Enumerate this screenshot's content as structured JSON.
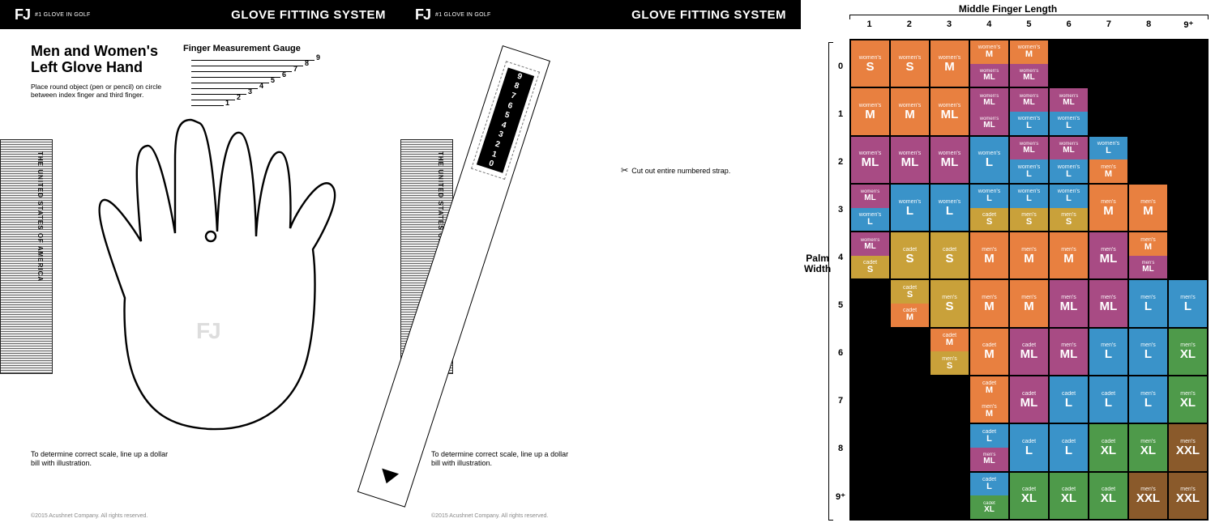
{
  "hdr": {
    "logo": "FJ",
    "tag": "#1 GLOVE IN GOLF",
    "title": "GLOVE FITTING SYSTEM"
  },
  "left": {
    "title": "Men and Women's Left Glove Hand",
    "sub": "Place round object (pen or pencil) on circle between index finger and third finger.",
    "gaugeTitle": "Finger Measurement Gauge",
    "scaleNote": "To determine correct scale, line up a dollar bill with illustration.",
    "copy": "©2015 Acushnet Company. All rights reserved."
  },
  "mid": {
    "cut": "Cut out entire numbered strap."
  },
  "gaugeNums": [
    "1",
    "2",
    "3",
    "4",
    "5",
    "6",
    "7",
    "8",
    "9"
  ],
  "strapNums": [
    "9",
    "8",
    "7",
    "6",
    "5",
    "4",
    "3",
    "2",
    "1",
    "0"
  ],
  "chart": {
    "axisX": "Middle Finger Length",
    "axisY1": "Palm",
    "axisY2": "Width",
    "cols": [
      "1",
      "2",
      "3",
      "4",
      "5",
      "6",
      "7",
      "8",
      "9⁺"
    ],
    "rows": [
      "0",
      "1",
      "2",
      "3",
      "4",
      "5",
      "6",
      "7",
      "8",
      "9⁺"
    ],
    "colors": {
      "orange": "#e88040",
      "gold": "#c9a13a",
      "plum": "#a84b84",
      "blue": "#3a93c9",
      "green": "#4e9a4a",
      "brown": "#8a5a2b",
      "black": "#000"
    },
    "cells": {
      "0,0": [
        {
          "p": "full",
          "c": "orange",
          "t": "women's",
          "s": "S"
        }
      ],
      "0,1": [
        {
          "p": "full",
          "c": "orange",
          "t": "women's",
          "s": "S"
        }
      ],
      "0,2": [
        {
          "p": "full",
          "c": "orange",
          "t": "women's",
          "s": "M"
        }
      ],
      "0,3": [
        {
          "p": "top",
          "c": "orange",
          "t": "women's",
          "s": "M"
        },
        {
          "p": "bot",
          "c": "plum",
          "t": "women's",
          "s": "ML"
        }
      ],
      "0,4": [
        {
          "p": "top",
          "c": "orange",
          "t": "women's",
          "s": "M"
        },
        {
          "p": "bot",
          "c": "plum",
          "t": "women's",
          "s": "ML"
        }
      ],
      "1,0": [
        {
          "p": "full",
          "c": "orange",
          "t": "women's",
          "s": "M"
        }
      ],
      "1,1": [
        {
          "p": "full",
          "c": "orange",
          "t": "women's",
          "s": "M"
        }
      ],
      "1,2": [
        {
          "p": "full",
          "c": "orange",
          "t": "women's",
          "s": "ML"
        }
      ],
      "1,3": [
        {
          "p": "top",
          "c": "plum",
          "t": "women's",
          "s": "ML"
        },
        {
          "p": "bot",
          "c": "plum",
          "t": "women's",
          "s": "ML"
        }
      ],
      "1,4": [
        {
          "p": "top",
          "c": "plum",
          "t": "women's",
          "s": "ML"
        },
        {
          "p": "bot",
          "c": "blue",
          "t": "women's",
          "s": "L"
        }
      ],
      "1,5": [
        {
          "p": "top",
          "c": "plum",
          "t": "women's",
          "s": "ML"
        },
        {
          "p": "bot",
          "c": "blue",
          "t": "women's",
          "s": "L"
        }
      ],
      "2,0": [
        {
          "p": "full",
          "c": "plum",
          "t": "women's",
          "s": "ML"
        }
      ],
      "2,1": [
        {
          "p": "full",
          "c": "plum",
          "t": "women's",
          "s": "ML"
        }
      ],
      "2,2": [
        {
          "p": "full",
          "c": "plum",
          "t": "women's",
          "s": "ML"
        }
      ],
      "2,3": [
        {
          "p": "full",
          "c": "blue",
          "t": "women's",
          "s": "L"
        }
      ],
      "2,4": [
        {
          "p": "top",
          "c": "plum",
          "t": "women's",
          "s": "ML"
        },
        {
          "p": "bot",
          "c": "blue",
          "t": "women's",
          "s": "L"
        }
      ],
      "2,5": [
        {
          "p": "top",
          "c": "plum",
          "t": "women's",
          "s": "ML"
        },
        {
          "p": "bot",
          "c": "blue",
          "t": "women's",
          "s": "L"
        }
      ],
      "2,6": [
        {
          "p": "top",
          "c": "blue",
          "t": "women's",
          "s": "L"
        },
        {
          "p": "bot",
          "c": "orange",
          "t": "men's",
          "s": "M"
        }
      ],
      "3,0": [
        {
          "p": "top",
          "c": "plum",
          "t": "women's",
          "s": "ML"
        },
        {
          "p": "bot",
          "c": "blue",
          "t": "women's",
          "s": "L"
        }
      ],
      "3,1": [
        {
          "p": "full",
          "c": "blue",
          "t": "women's",
          "s": "L"
        }
      ],
      "3,2": [
        {
          "p": "full",
          "c": "blue",
          "t": "women's",
          "s": "L"
        }
      ],
      "3,3": [
        {
          "p": "top",
          "c": "blue",
          "t": "women's",
          "s": "L"
        },
        {
          "p": "bot",
          "c": "gold",
          "t": "cadet",
          "s": "S"
        }
      ],
      "3,4": [
        {
          "p": "top",
          "c": "blue",
          "t": "women's",
          "s": "L"
        },
        {
          "p": "bot",
          "c": "gold",
          "t": "men's",
          "s": "S"
        }
      ],
      "3,5": [
        {
          "p": "top",
          "c": "blue",
          "t": "women's",
          "s": "L"
        },
        {
          "p": "bot",
          "c": "gold",
          "t": "men's",
          "s": "S"
        }
      ],
      "3,6": [
        {
          "p": "full",
          "c": "orange",
          "t": "men's",
          "s": "M"
        }
      ],
      "3,7": [
        {
          "p": "full",
          "c": "orange",
          "t": "men's",
          "s": "M"
        }
      ],
      "4,0": [
        {
          "p": "top",
          "c": "plum",
          "t": "women's",
          "s": "ML"
        },
        {
          "p": "bot",
          "c": "gold",
          "t": "cadet",
          "s": "S"
        }
      ],
      "4,1": [
        {
          "p": "full",
          "c": "gold",
          "t": "cadet",
          "s": "S"
        }
      ],
      "4,2": [
        {
          "p": "full",
          "c": "gold",
          "t": "cadet",
          "s": "S"
        }
      ],
      "4,3": [
        {
          "p": "full",
          "c": "orange",
          "t": "men's",
          "s": "M"
        }
      ],
      "4,4": [
        {
          "p": "full",
          "c": "orange",
          "t": "men's",
          "s": "M"
        }
      ],
      "4,5": [
        {
          "p": "full",
          "c": "orange",
          "t": "men's",
          "s": "M"
        }
      ],
      "4,6": [
        {
          "p": "full",
          "c": "plum",
          "t": "men's",
          "s": "ML"
        }
      ],
      "4,7": [
        {
          "p": "top",
          "c": "orange",
          "t": "men's",
          "s": "M"
        },
        {
          "p": "bot",
          "c": "plum",
          "t": "men's",
          "s": "ML"
        }
      ],
      "5,1": [
        {
          "p": "top",
          "c": "gold",
          "t": "cadet",
          "s": "S"
        },
        {
          "p": "bot",
          "c": "orange",
          "t": "cadet",
          "s": "M"
        }
      ],
      "5,2": [
        {
          "p": "full",
          "c": "gold",
          "t": "men's",
          "s": "S"
        }
      ],
      "5,3": [
        {
          "p": "full",
          "c": "orange",
          "t": "men's",
          "s": "M"
        }
      ],
      "5,4": [
        {
          "p": "full",
          "c": "orange",
          "t": "men's",
          "s": "M"
        }
      ],
      "5,5": [
        {
          "p": "full",
          "c": "plum",
          "t": "men's",
          "s": "ML"
        }
      ],
      "5,6": [
        {
          "p": "full",
          "c": "plum",
          "t": "men's",
          "s": "ML"
        }
      ],
      "5,7": [
        {
          "p": "full",
          "c": "blue",
          "t": "men's",
          "s": "L"
        }
      ],
      "5,8": [
        {
          "p": "full",
          "c": "blue",
          "t": "men's",
          "s": "L"
        }
      ],
      "6,2": [
        {
          "p": "top",
          "c": "orange",
          "t": "cadet",
          "s": "M"
        },
        {
          "p": "bot",
          "c": "gold",
          "t": "men's",
          "s": "S"
        }
      ],
      "6,3": [
        {
          "p": "full",
          "c": "orange",
          "t": "cadet",
          "s": "M"
        }
      ],
      "6,4": [
        {
          "p": "full",
          "c": "plum",
          "t": "cadet",
          "s": "ML"
        }
      ],
      "6,5": [
        {
          "p": "full",
          "c": "plum",
          "t": "men's",
          "s": "ML"
        }
      ],
      "6,6": [
        {
          "p": "full",
          "c": "blue",
          "t": "men's",
          "s": "L"
        }
      ],
      "6,7": [
        {
          "p": "full",
          "c": "blue",
          "t": "men's",
          "s": "L"
        }
      ],
      "6,8": [
        {
          "p": "full",
          "c": "green",
          "t": "men's",
          "s": "XL"
        }
      ],
      "7,3": [
        {
          "p": "top",
          "c": "orange",
          "t": "cadet",
          "s": "M"
        },
        {
          "p": "bot",
          "c": "orange",
          "t": "men's",
          "s": "M"
        }
      ],
      "7,4": [
        {
          "p": "full",
          "c": "plum",
          "t": "cadet",
          "s": "ML"
        }
      ],
      "7,5": [
        {
          "p": "full",
          "c": "blue",
          "t": "cadet",
          "s": "L"
        }
      ],
      "7,6": [
        {
          "p": "full",
          "c": "blue",
          "t": "cadet",
          "s": "L"
        }
      ],
      "7,7": [
        {
          "p": "full",
          "c": "blue",
          "t": "men's",
          "s": "L"
        }
      ],
      "7,8": [
        {
          "p": "full",
          "c": "green",
          "t": "men's",
          "s": "XL"
        }
      ],
      "8,3": [
        {
          "p": "top",
          "c": "blue",
          "t": "cadet",
          "s": "L"
        },
        {
          "p": "bot",
          "c": "plum",
          "t": "men's",
          "s": "ML"
        }
      ],
      "8,4": [
        {
          "p": "full",
          "c": "blue",
          "t": "cadet",
          "s": "L"
        }
      ],
      "8,5": [
        {
          "p": "full",
          "c": "blue",
          "t": "cadet",
          "s": "L"
        }
      ],
      "8,6": [
        {
          "p": "full",
          "c": "green",
          "t": "cadet",
          "s": "XL"
        }
      ],
      "8,7": [
        {
          "p": "full",
          "c": "green",
          "t": "men's",
          "s": "XL"
        }
      ],
      "8,8": [
        {
          "p": "full",
          "c": "brown",
          "t": "men's",
          "s": "XXL"
        }
      ],
      "9,3": [
        {
          "p": "top",
          "c": "blue",
          "t": "cadet",
          "s": "L"
        },
        {
          "p": "bot",
          "c": "green",
          "t": "cadet",
          "s": "XL"
        }
      ],
      "9,4": [
        {
          "p": "full",
          "c": "green",
          "t": "cadet",
          "s": "XL"
        }
      ],
      "9,5": [
        {
          "p": "full",
          "c": "green",
          "t": "cadet",
          "s": "XL"
        }
      ],
      "9,6": [
        {
          "p": "full",
          "c": "green",
          "t": "cadet",
          "s": "XL"
        }
      ],
      "9,7": [
        {
          "p": "full",
          "c": "brown",
          "t": "men's",
          "s": "XXL"
        }
      ],
      "9,8": [
        {
          "p": "full",
          "c": "brown",
          "t": "men's",
          "s": "XXL"
        }
      ]
    }
  }
}
